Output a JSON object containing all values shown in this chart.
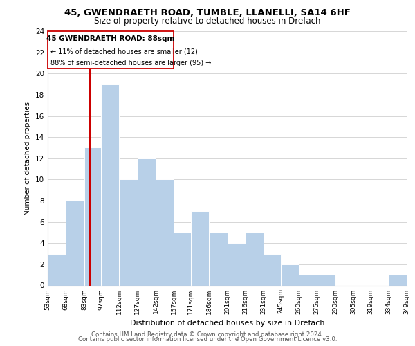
{
  "title_line1": "45, GWENDRAETH ROAD, TUMBLE, LLANELLI, SA14 6HF",
  "title_line2": "Size of property relative to detached houses in Drefach",
  "xlabel": "Distribution of detached houses by size in Drefach",
  "ylabel": "Number of detached properties",
  "bin_edges": [
    53,
    68,
    83,
    97,
    112,
    127,
    142,
    157,
    171,
    186,
    201,
    216,
    231,
    245,
    260,
    275,
    290,
    305,
    319,
    334,
    349
  ],
  "bin_labels": [
    "53sqm",
    "68sqm",
    "83sqm",
    "97sqm",
    "112sqm",
    "127sqm",
    "142sqm",
    "157sqm",
    "171sqm",
    "186sqm",
    "201sqm",
    "216sqm",
    "231sqm",
    "245sqm",
    "260sqm",
    "275sqm",
    "290sqm",
    "305sqm",
    "319sqm",
    "334sqm",
    "349sqm"
  ],
  "counts": [
    3,
    8,
    13,
    19,
    10,
    12,
    10,
    5,
    7,
    5,
    4,
    5,
    3,
    2,
    1,
    1,
    0,
    0,
    0,
    1
  ],
  "bar_color": "#b8d0e8",
  "bar_edge_color": "#ffffff",
  "grid_color": "#d0d0d0",
  "vline_x": 88,
  "vline_color": "#cc0000",
  "annotation_title_text": "45 GWENDRAETH ROAD: 88sqm",
  "annotation_line1": "← 11% of detached houses are smaller (12)",
  "annotation_line2": "88% of semi-detached houses are larger (95) →",
  "annotation_box_edge": "#cc0000",
  "ylim": [
    0,
    24
  ],
  "yticks": [
    0,
    2,
    4,
    6,
    8,
    10,
    12,
    14,
    16,
    18,
    20,
    22,
    24
  ],
  "footer_line1": "Contains HM Land Registry data © Crown copyright and database right 2024.",
  "footer_line2": "Contains public sector information licensed under the Open Government Licence v3.0."
}
